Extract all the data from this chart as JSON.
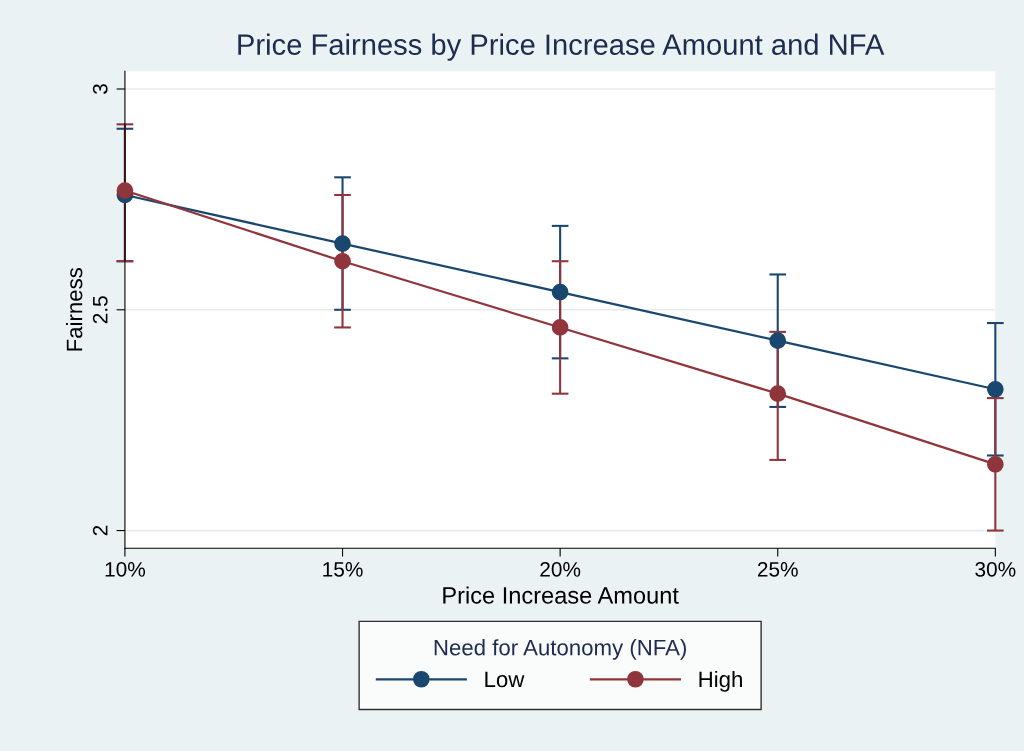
{
  "chart_data": {
    "type": "line",
    "title": "Price Fairness by Price Increase Amount and NFA",
    "xlabel": "Price Increase Amount",
    "ylabel": "Fairness",
    "legend_title": "Need for Autonomy (NFA)",
    "x": [
      10,
      15,
      20,
      25,
      30
    ],
    "series": [
      {
        "name": "Low",
        "color": "#1a476f",
        "values": [
          2.76,
          2.65,
          2.54,
          2.43,
          2.32
        ],
        "errors": [
          [
            2.61,
            2.91
          ],
          [
            2.5,
            2.8
          ],
          [
            2.39,
            2.69
          ],
          [
            2.28,
            2.58
          ],
          [
            2.17,
            2.47
          ]
        ]
      },
      {
        "name": "High",
        "color": "#90353b",
        "values": [
          2.77,
          2.61,
          2.46,
          2.31,
          2.15
        ],
        "errors": [
          [
            2.61,
            2.92
          ],
          [
            2.46,
            2.76
          ],
          [
            2.31,
            2.61
          ],
          [
            2.16,
            2.45
          ],
          [
            2.0,
            2.3
          ]
        ]
      }
    ],
    "xlim": [
      10,
      30
    ],
    "xticks": [
      {
        "value": 10,
        "label": "10%"
      },
      {
        "value": 15,
        "label": "15%"
      },
      {
        "value": 20,
        "label": "20%"
      },
      {
        "value": 25,
        "label": "25%"
      },
      {
        "value": 30,
        "label": "30%"
      }
    ],
    "ylim": [
      1.96,
      3.04
    ],
    "yticks": [
      2,
      2.5,
      3
    ],
    "grid": "y",
    "legend": "bottom",
    "marker": "circle",
    "line_style": "solid"
  }
}
